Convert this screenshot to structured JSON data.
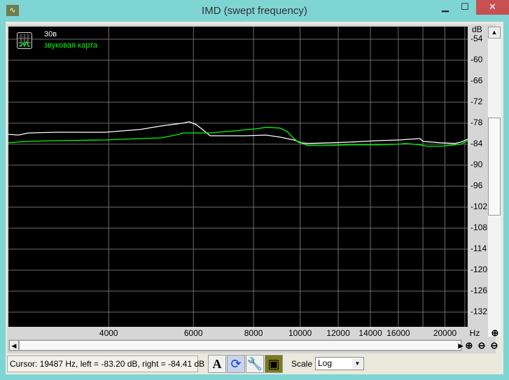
{
  "window": {
    "title": "IMD (swept frequency)",
    "minimize": "▁",
    "maximize": "☐",
    "close": "✕"
  },
  "legend": {
    "entries": [
      "30в",
      "звуковая карта"
    ]
  },
  "status": {
    "cursor_text": "Cursor:  19487 Hz,  left = -83.20 dB,  right = -84.41 dB"
  },
  "toolbar": {
    "font_button": "A",
    "scale_label": "Scale",
    "scale_value": "Log"
  },
  "chart_data": {
    "type": "line",
    "x_scale": "log",
    "xlabel": "Hz",
    "ylabel": "dB",
    "xlim": [
      2475,
      22300
    ],
    "ylim": [
      -136.2,
      -50.4
    ],
    "x_ticks": [
      4000,
      6000,
      8000,
      10000,
      12000,
      14000,
      16000,
      20000
    ],
    "x_ticks_labels": [
      "4000",
      "6000",
      "8000",
      "10000",
      "12000",
      "14000",
      "16000",
      "20000"
    ],
    "x_gridlines": [
      4000,
      6000,
      8000,
      10000,
      12000,
      14000,
      16000,
      18000,
      20000,
      22000
    ],
    "y_ticks": [
      -54,
      -60,
      -66,
      -72,
      -78,
      -84,
      -90,
      -96,
      -102,
      -108,
      -114,
      -120,
      -126,
      -132
    ],
    "y_ticks_labels": [
      "-54",
      "-60",
      "-66",
      "-72",
      "-78",
      "-84",
      "-90",
      "-96",
      "-102",
      "-108",
      "-114",
      "-120",
      "-126",
      "-132"
    ],
    "grid": true,
    "legend_position": "top-left",
    "series": [
      {
        "name": "30в",
        "color": "#ffffff",
        "points": [
          [
            2475,
            -81.2
          ],
          [
            2600,
            -81.4
          ],
          [
            2720,
            -80.8
          ],
          [
            3110,
            -80.6
          ],
          [
            3930,
            -80.6
          ],
          [
            4650,
            -79.8
          ],
          [
            5140,
            -78.8
          ],
          [
            5690,
            -78.0
          ],
          [
            5880,
            -77.6
          ],
          [
            6080,
            -78.4
          ],
          [
            6290,
            -80.0
          ],
          [
            6500,
            -81.6
          ],
          [
            7690,
            -81.6
          ],
          [
            8500,
            -81.4
          ],
          [
            9090,
            -82.0
          ],
          [
            9710,
            -82.8
          ],
          [
            10050,
            -83.6
          ],
          [
            10390,
            -83.8
          ],
          [
            12700,
            -83.4
          ],
          [
            14520,
            -83.0
          ],
          [
            16050,
            -82.8
          ],
          [
            17750,
            -82.4
          ],
          [
            18000,
            -83.2
          ],
          [
            19620,
            -83.6
          ],
          [
            20980,
            -83.8
          ],
          [
            21600,
            -83.4
          ],
          [
            22290,
            -82.6
          ]
        ]
      },
      {
        "name": "звуковая карта",
        "color": "#00ff00",
        "points": [
          [
            2475,
            -83.6
          ],
          [
            2720,
            -83.2
          ],
          [
            3110,
            -83.0
          ],
          [
            3930,
            -82.8
          ],
          [
            4650,
            -82.4
          ],
          [
            5140,
            -82.2
          ],
          [
            5600,
            -81.2
          ],
          [
            5690,
            -80.8
          ],
          [
            6500,
            -80.8
          ],
          [
            7300,
            -80.2
          ],
          [
            8100,
            -79.6
          ],
          [
            8500,
            -79.2
          ],
          [
            9090,
            -79.4
          ],
          [
            9400,
            -80.4
          ],
          [
            9710,
            -82.4
          ],
          [
            9900,
            -83.4
          ],
          [
            10390,
            -84.4
          ],
          [
            11100,
            -84.4
          ],
          [
            12700,
            -84.2
          ],
          [
            14520,
            -84.2
          ],
          [
            16050,
            -84.0
          ],
          [
            16600,
            -83.8
          ],
          [
            17750,
            -84.2
          ],
          [
            18350,
            -84.6
          ],
          [
            19620,
            -84.6
          ],
          [
            21600,
            -84.0
          ],
          [
            22290,
            -83.0
          ]
        ]
      }
    ]
  }
}
